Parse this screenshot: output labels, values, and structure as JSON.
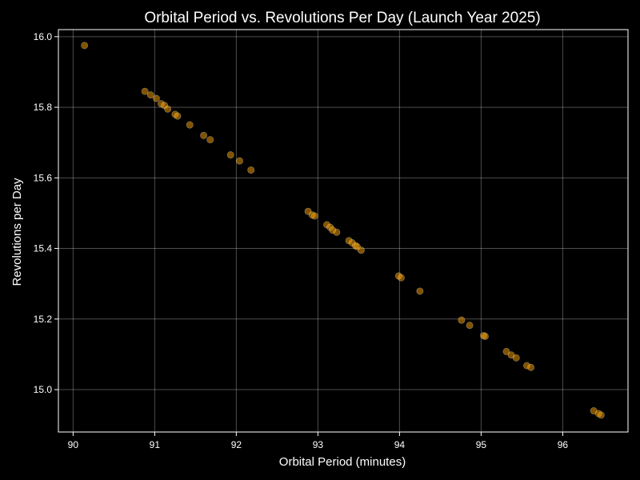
{
  "colors": {
    "background": "#000000",
    "text": "#ffffff",
    "grid": "#ffffff",
    "point_fill": "#ffa500",
    "point_edge": "#ffffff"
  },
  "chart_data": {
    "type": "scatter",
    "title": "Orbital Period vs. Revolutions Per Day (Launch Year 2025)",
    "xlabel": "Orbital Period (minutes)",
    "ylabel": "Revolutions per Day",
    "xlim": [
      89.82,
      96.8
    ],
    "ylim": [
      14.88,
      16.02
    ],
    "xticks": [
      90,
      91,
      92,
      93,
      94,
      95,
      96
    ],
    "xtick_labels": [
      "90",
      "91",
      "92",
      "93",
      "94",
      "95",
      "96"
    ],
    "yticks": [
      15.0,
      15.2,
      15.4,
      15.6,
      15.8,
      16.0
    ],
    "ytick_labels": [
      "15.0",
      "15.2",
      "15.4",
      "15.6",
      "15.8",
      "16.0"
    ],
    "grid": true,
    "point_alpha": 0.5,
    "x": [
      90.14,
      90.88,
      90.95,
      91.02,
      91.08,
      91.12,
      91.16,
      91.25,
      91.28,
      91.43,
      91.6,
      91.68,
      91.93,
      92.04,
      92.18,
      92.88,
      92.93,
      92.96,
      93.11,
      93.15,
      93.18,
      93.23,
      93.38,
      93.42,
      93.46,
      93.48,
      93.53,
      93.99,
      94.02,
      94.25,
      94.76,
      94.86,
      95.03,
      95.05,
      95.31,
      95.37,
      95.43,
      95.56,
      95.61,
      96.38,
      96.44,
      96.47
    ],
    "y": [
      15.975,
      15.845,
      15.835,
      15.825,
      15.81,
      15.805,
      15.795,
      15.78,
      15.775,
      15.75,
      15.72,
      15.708,
      15.665,
      15.648,
      15.622,
      15.505,
      15.495,
      15.492,
      15.467,
      15.46,
      15.452,
      15.446,
      15.422,
      15.416,
      15.408,
      15.405,
      15.395,
      15.322,
      15.317,
      15.279,
      15.197,
      15.182,
      15.153,
      15.151,
      15.108,
      15.098,
      15.09,
      15.068,
      15.063,
      14.94,
      14.932,
      14.928
    ]
  }
}
